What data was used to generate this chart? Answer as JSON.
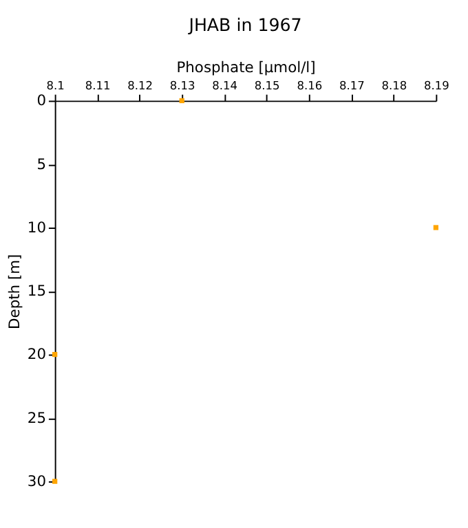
{
  "chart_data": {
    "type": "scatter",
    "title": "JHAB in 1967",
    "xlabel": "Phosphate [µmol/l]",
    "ylabel": "Depth [m]",
    "x": [
      8.13,
      8.19,
      8.1,
      8.1
    ],
    "series": [
      {
        "color": "#ffa500",
        "values": [
          0,
          10,
          20,
          30
        ]
      }
    ],
    "xlim": [
      8.1,
      8.19
    ],
    "xticks": [
      8.1,
      8.11,
      8.12,
      8.13,
      8.14,
      8.15,
      8.16,
      8.17,
      8.18,
      8.19
    ],
    "ylim": [
      30,
      0
    ],
    "yticks": [
      0,
      5,
      10,
      15,
      20,
      25,
      30
    ],
    "marker": "square",
    "grid": false
  }
}
